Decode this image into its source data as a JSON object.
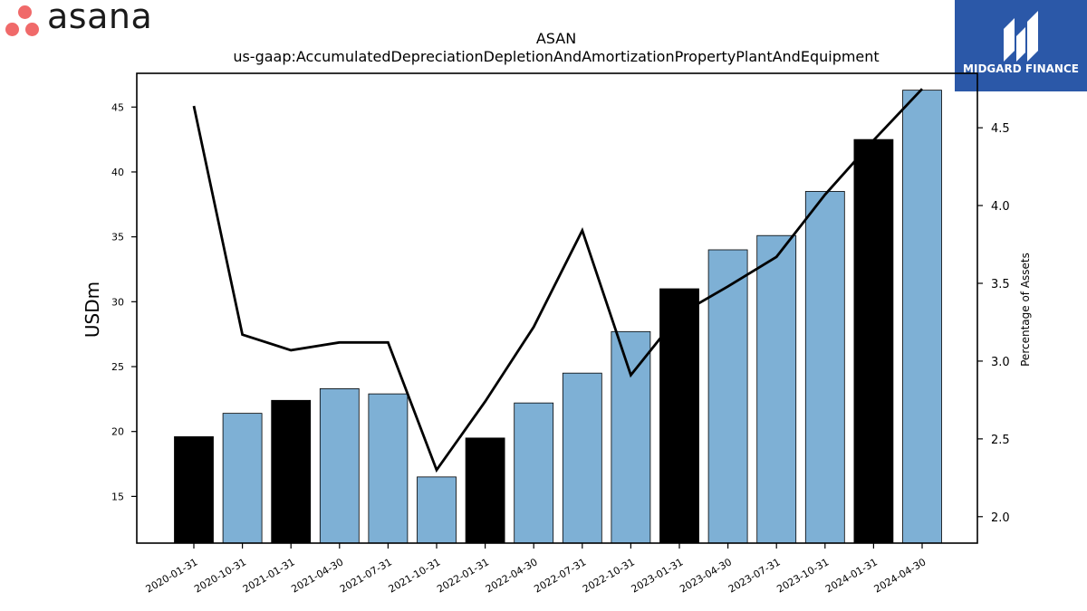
{
  "brand": {
    "name": "asana",
    "color": "#f06a6a"
  },
  "badge": {
    "name": "MIDGARD FINANCE",
    "bg": "#2b58a8",
    "icon": "midgard-finance-logo"
  },
  "chart_data": {
    "type": "bar",
    "title": "ASAN",
    "subtitle": "us-gaap:AccumulatedDepreciationDepletionAndAmortizationPropertyPlantAndEquipment",
    "ylabel": "USDm",
    "y2label": "Percentage of Assets",
    "ylim": [
      11.4,
      47.6
    ],
    "y2lim": [
      1.83,
      4.85
    ],
    "yticks": [
      15,
      20,
      25,
      30,
      35,
      40,
      45
    ],
    "y2ticks": [
      "2.0",
      "2.5",
      "3.0",
      "3.5",
      "4.0",
      "4.5"
    ],
    "categories": [
      "2020-01-31",
      "2020-10-31",
      "2021-01-31",
      "2021-04-30",
      "2021-07-31",
      "2021-10-31",
      "2022-01-31",
      "2022-04-30",
      "2022-07-31",
      "2022-10-31",
      "2023-01-31",
      "2023-04-30",
      "2023-07-31",
      "2023-10-31",
      "2024-01-31",
      "2024-04-30"
    ],
    "series": [
      {
        "kind": "bar",
        "axis": "left",
        "values": [
          19.6,
          21.4,
          22.4,
          23.3,
          22.9,
          16.5,
          19.5,
          22.2,
          24.5,
          27.7,
          31.0,
          34.0,
          35.1,
          38.5,
          42.5,
          46.3
        ],
        "colors": [
          "#000000",
          "#7eb0d5",
          "#000000",
          "#7eb0d5",
          "#7eb0d5",
          "#7eb0d5",
          "#000000",
          "#7eb0d5",
          "#7eb0d5",
          "#7eb0d5",
          "#000000",
          "#7eb0d5",
          "#7eb0d5",
          "#7eb0d5",
          "#000000",
          "#7eb0d5"
        ]
      },
      {
        "kind": "line",
        "axis": "right",
        "color": "#000000",
        "values": [
          4.64,
          3.17,
          3.07,
          3.12,
          3.12,
          2.3,
          2.74,
          3.22,
          3.84,
          2.91,
          3.3,
          3.48,
          3.67,
          4.07,
          4.42,
          4.75
        ]
      }
    ]
  }
}
